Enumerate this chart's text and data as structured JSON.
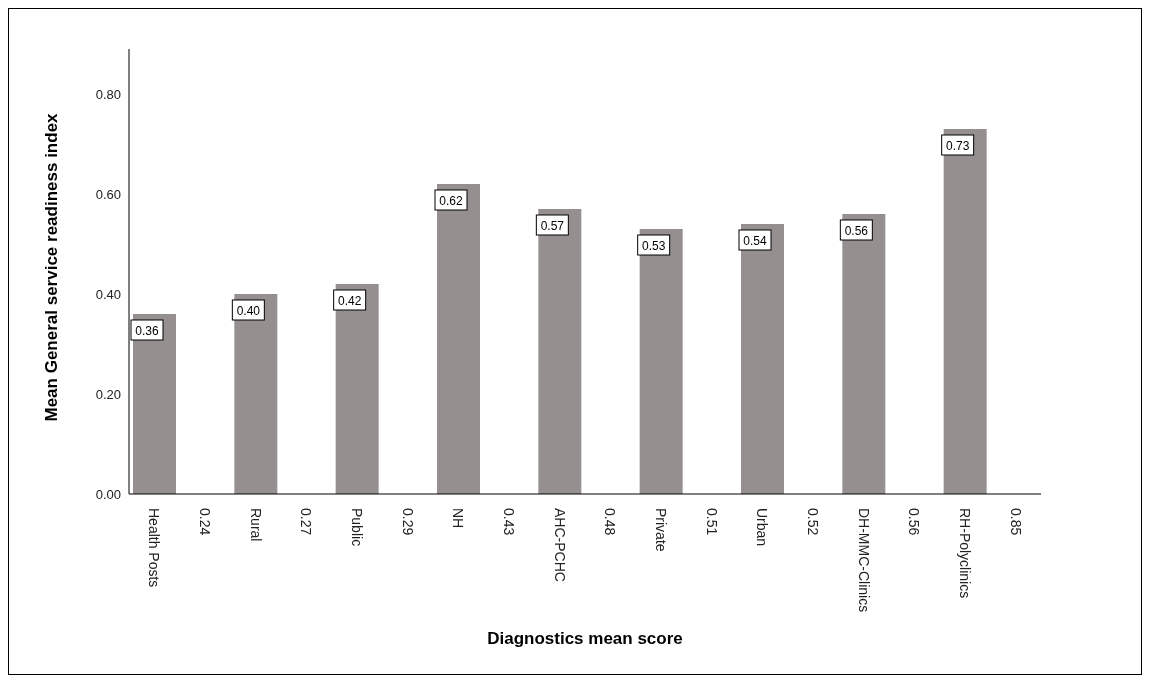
{
  "chart_data": {
    "type": "bar",
    "xlabel": "Diagnostics mean score",
    "ylabel": "Mean General service readiness index",
    "categories": [
      "Health Posts",
      "0.24",
      "Rural",
      "0.27",
      "Public",
      "0.29",
      "NH",
      "0.43",
      "AHC-PCHC",
      "0.48",
      "Private",
      "0.51",
      "Urban",
      "0.52",
      "DH-MMC-Clinics",
      "0.56",
      "RH-Polyclinics",
      "0.85"
    ],
    "values": [
      0.36,
      null,
      0.4,
      null,
      0.42,
      null,
      0.62,
      null,
      0.57,
      null,
      0.53,
      null,
      0.54,
      null,
      0.56,
      null,
      0.73,
      null
    ],
    "value_labels": [
      "0.36",
      null,
      "0.40",
      null,
      "0.42",
      null,
      "0.62",
      null,
      "0.57",
      null,
      "0.53",
      null,
      "0.54",
      null,
      "0.56",
      null,
      "0.73",
      null
    ],
    "color": "#958f8f",
    "ylim": [
      0,
      0.89
    ],
    "yticks": [
      {
        "value": 0,
        "label": "0.00"
      },
      {
        "value": 0.2,
        "label": "0.20"
      },
      {
        "value": 0.4,
        "label": "0.40"
      },
      {
        "value": 0.6,
        "label": "0.60"
      },
      {
        "value": 0.8,
        "label": "0.80"
      }
    ],
    "grid": false,
    "legend": false
  }
}
